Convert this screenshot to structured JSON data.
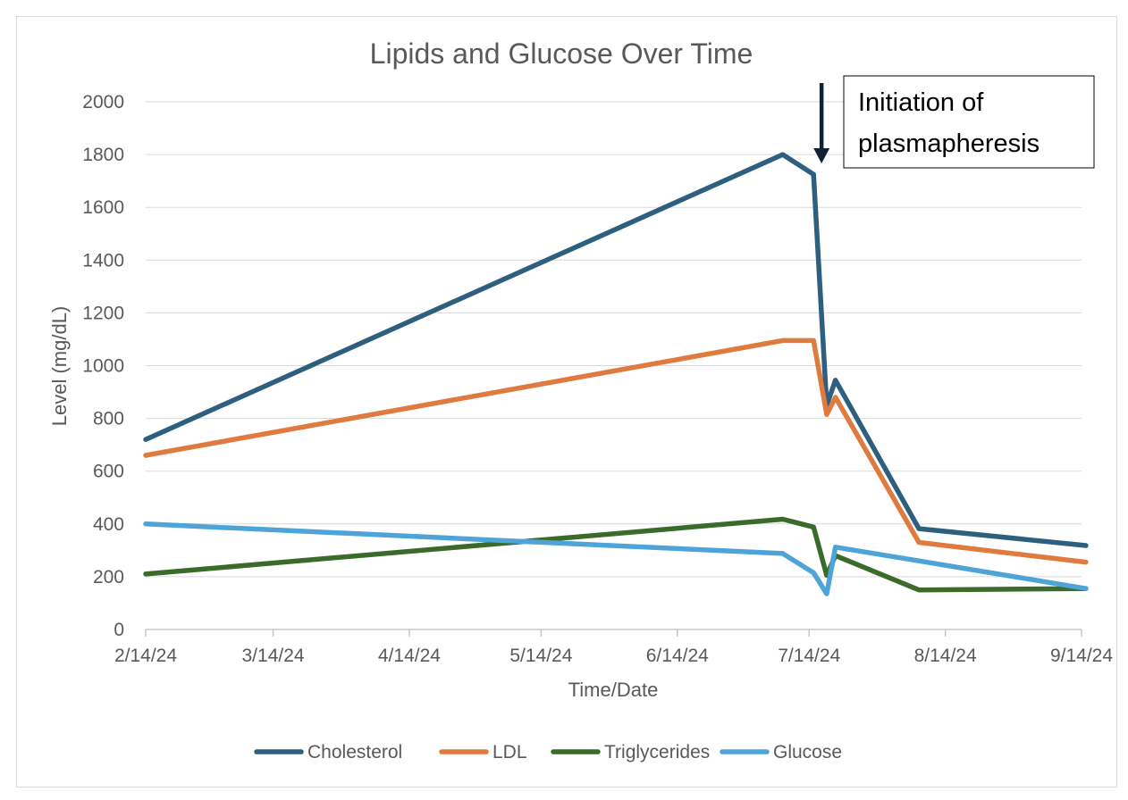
{
  "chart_data": {
    "type": "line",
    "title": "Lipids and Glucose Over Time",
    "xlabel": "Time/Date",
    "ylabel": "Level (mg/dL)",
    "ylim": [
      0,
      2000
    ],
    "yticks": [
      0,
      200,
      400,
      600,
      800,
      1000,
      1200,
      1400,
      1600,
      1800,
      2000
    ],
    "xlim": [
      "2024-02-14",
      "2024-09-14"
    ],
    "xticks": [
      "2024-02-14",
      "2024-03-14",
      "2024-04-14",
      "2024-05-14",
      "2024-06-14",
      "2024-07-14",
      "2024-08-14",
      "2024-09-14"
    ],
    "xtick_labels": [
      "2/14/24",
      "3/14/24",
      "4/14/24",
      "5/14/24",
      "6/14/24",
      "7/14/24",
      "8/14/24",
      "9/14/24"
    ],
    "grid": true,
    "legend_position": "bottom",
    "x": [
      "2024-02-14",
      "2024-07-08",
      "2024-07-15",
      "2024-07-18",
      "2024-07-20",
      "2024-08-08",
      "2024-09-15"
    ],
    "series": [
      {
        "name": "Cholesterol",
        "color": "#2e5f7e",
        "values": [
          720,
          1800,
          1725,
          850,
          945,
          382,
          318
        ]
      },
      {
        "name": "LDL",
        "color": "#e07b3f",
        "values": [
          660,
          1095,
          1095,
          815,
          880,
          330,
          255
        ]
      },
      {
        "name": "Triglycerides",
        "color": "#3a6b2b",
        "values": [
          210,
          418,
          388,
          205,
          280,
          150,
          155
        ]
      },
      {
        "name": "Glucose",
        "color": "#4ea3d8",
        "values": [
          400,
          288,
          215,
          135,
          312,
          260,
          155
        ]
      }
    ],
    "annotation": {
      "text_lines": [
        "Initiation of",
        "plasmapheresis"
      ],
      "x": "2024-07-15",
      "arrow": "down"
    }
  }
}
